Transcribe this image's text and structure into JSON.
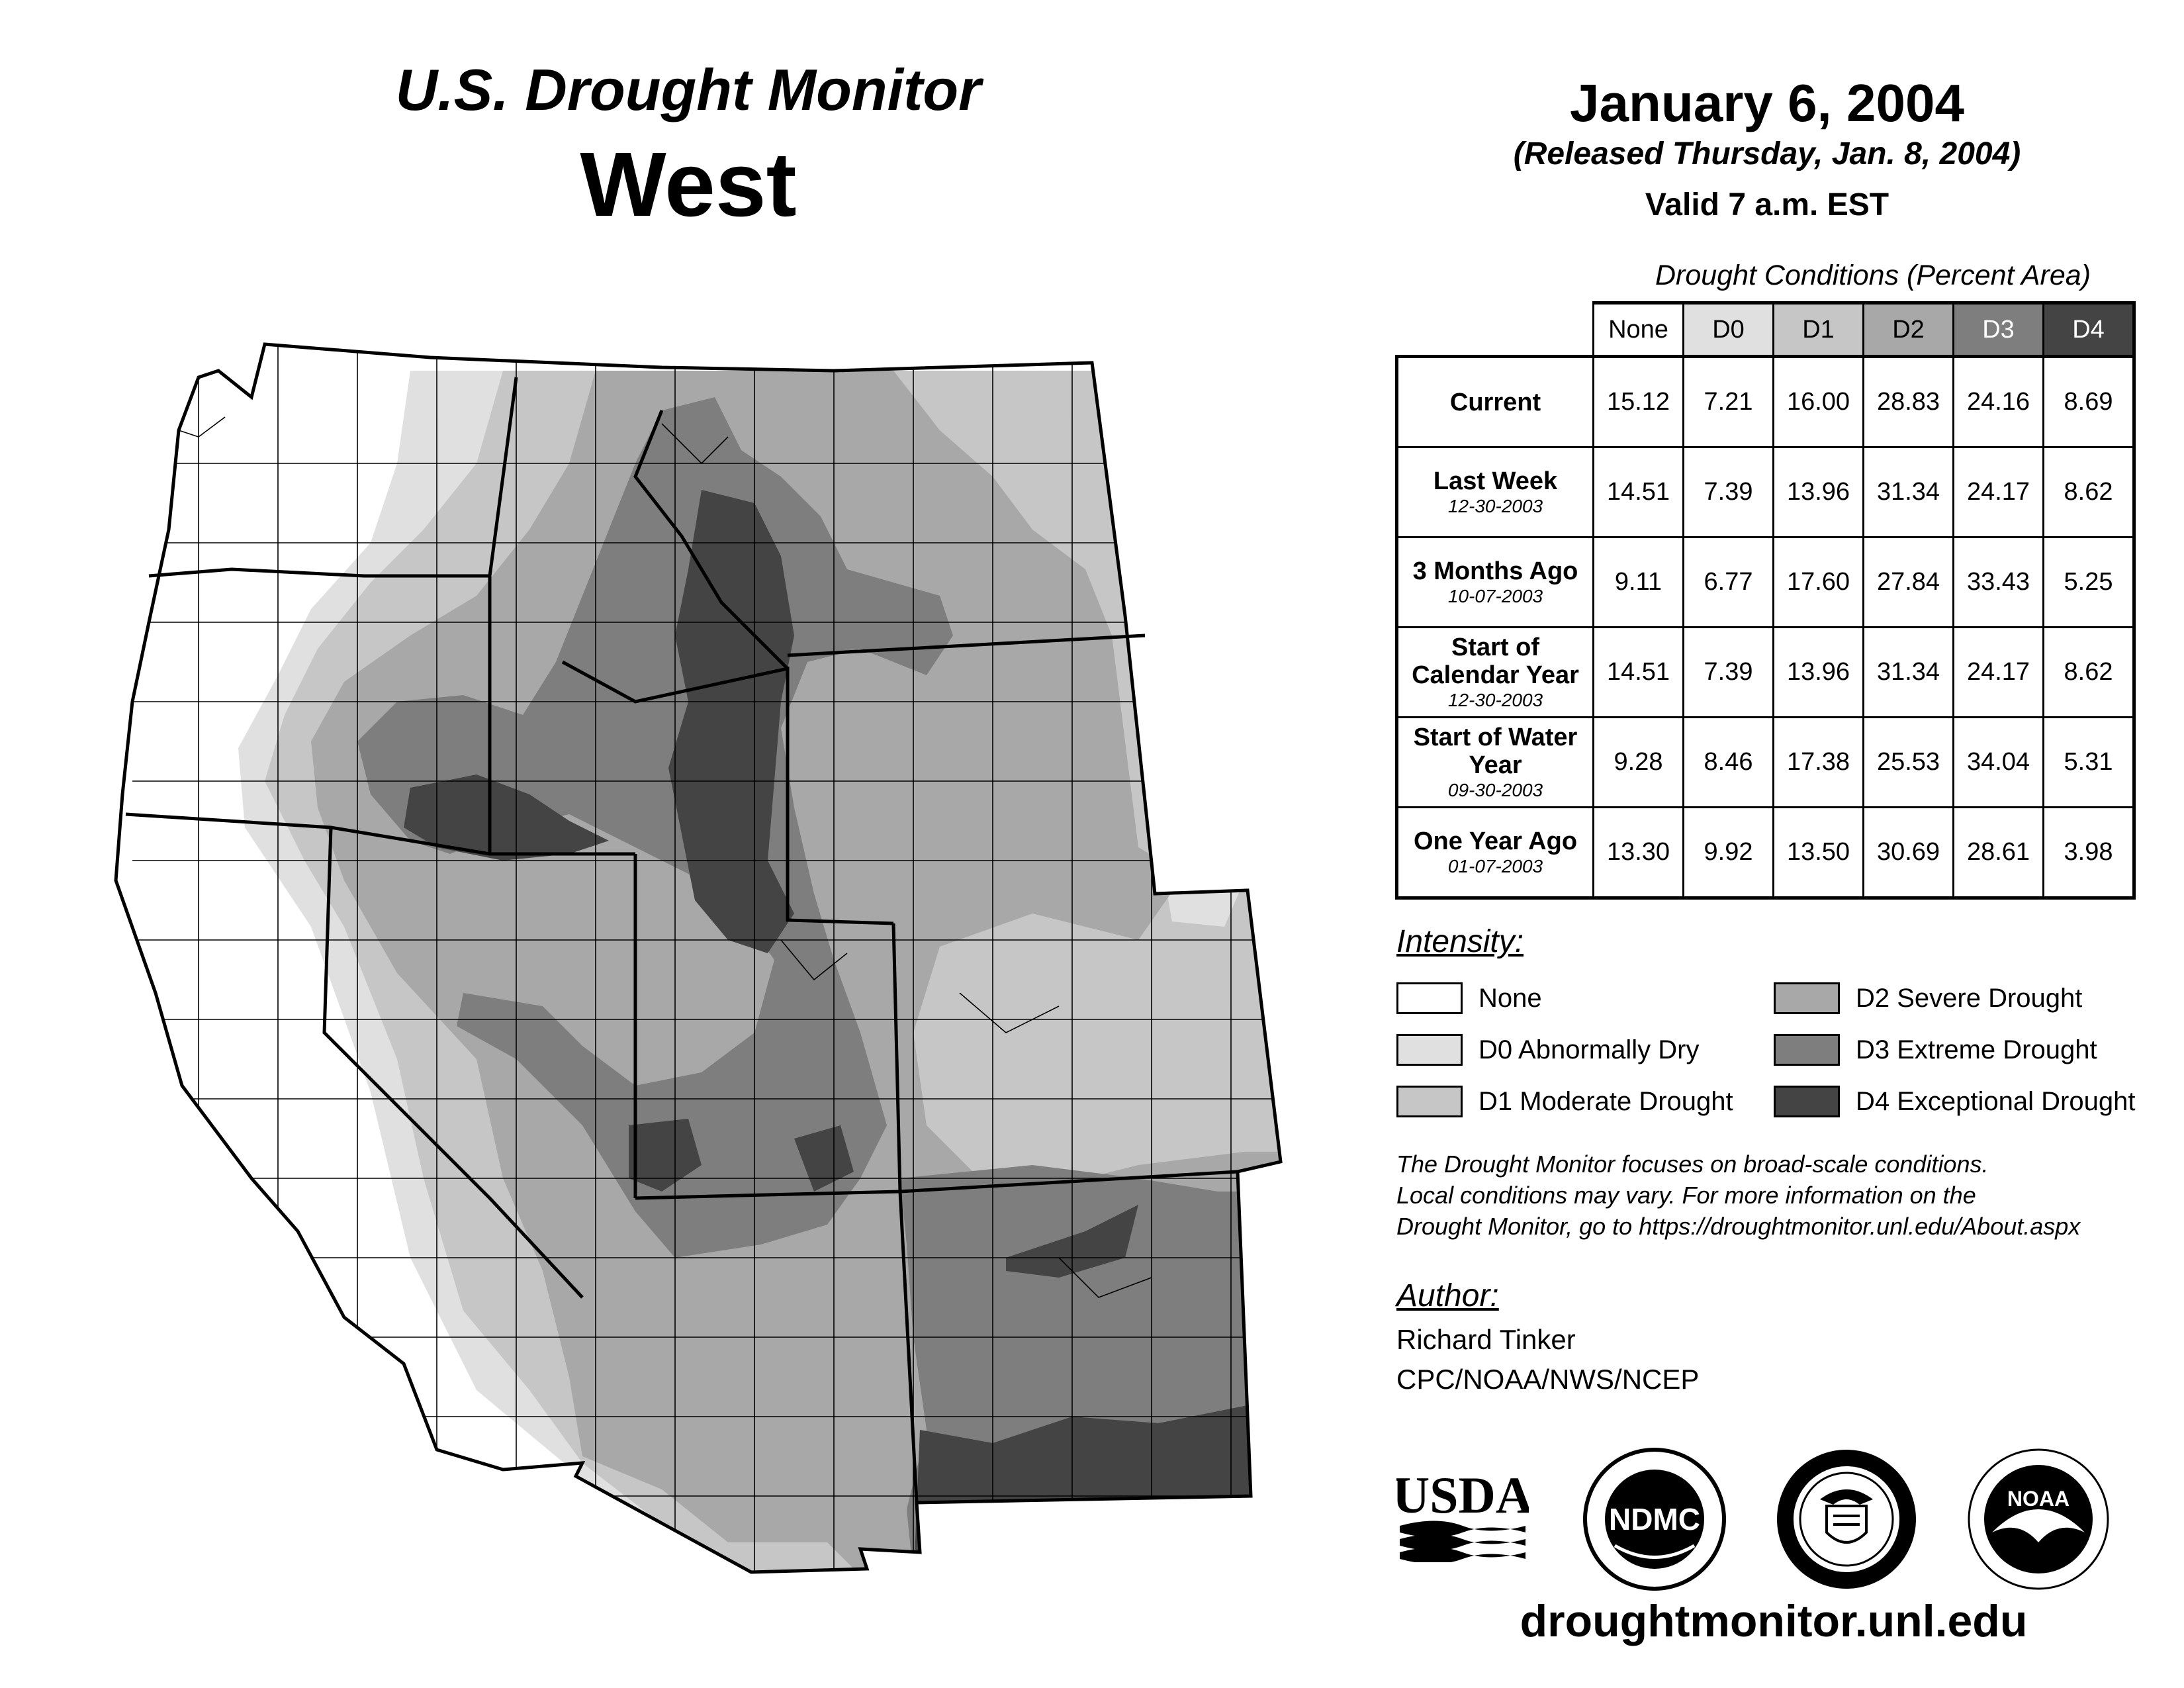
{
  "header": {
    "title": "U.S. Drought Monitor",
    "region": "West",
    "date": "January 6, 2004",
    "released": "(Released Thursday, Jan. 8, 2004)",
    "valid": "Valid 7 a.m. EST"
  },
  "table": {
    "caption": "Drought Conditions (Percent Area)",
    "columns": [
      "None",
      "D0",
      "D1",
      "D2",
      "D3",
      "D4"
    ],
    "column_colors": [
      "#ffffff",
      "#e0e0e0",
      "#c6c6c6",
      "#a8a8a8",
      "#7e7e7e",
      "#444444"
    ],
    "rows": [
      {
        "label": "Current",
        "sub": "",
        "values": [
          "15.12",
          "7.21",
          "16.00",
          "28.83",
          "24.16",
          "8.69"
        ]
      },
      {
        "label": "Last Week",
        "sub": "12-30-2003",
        "values": [
          "14.51",
          "7.39",
          "13.96",
          "31.34",
          "24.17",
          "8.62"
        ]
      },
      {
        "label": "3 Months Ago",
        "sub": "10-07-2003",
        "values": [
          "9.11",
          "6.77",
          "17.60",
          "27.84",
          "33.43",
          "5.25"
        ]
      },
      {
        "label": "Start of Calendar Year",
        "sub": "12-30-2003",
        "values": [
          "14.51",
          "7.39",
          "13.96",
          "31.34",
          "24.17",
          "8.62"
        ]
      },
      {
        "label": "Start of Water Year",
        "sub": "09-30-2003",
        "values": [
          "9.28",
          "8.46",
          "17.38",
          "25.53",
          "34.04",
          "5.31"
        ]
      },
      {
        "label": "One Year Ago",
        "sub": "01-07-2003",
        "values": [
          "13.30",
          "9.92",
          "13.50",
          "30.69",
          "28.61",
          "3.98"
        ]
      }
    ]
  },
  "legend": {
    "title": "Intensity:",
    "items": [
      {
        "label": "None",
        "color": "#ffffff"
      },
      {
        "label": "D0 Abnormally Dry",
        "color": "#e0e0e0"
      },
      {
        "label": "D1 Moderate Drought",
        "color": "#c6c6c6"
      },
      {
        "label": "D2 Severe Drought",
        "color": "#a8a8a8"
      },
      {
        "label": "D3 Extreme Drought",
        "color": "#7e7e7e"
      },
      {
        "label": "D4 Exceptional Drought",
        "color": "#444444"
      }
    ]
  },
  "note": {
    "line1": "The Drought Monitor focuses on broad-scale conditions.",
    "line2": "Local conditions may vary. For more information on the",
    "line3": "Drought Monitor, go to https://droughtmonitor.unl.edu/About.aspx"
  },
  "author": {
    "title": "Author:",
    "name": "Richard Tinker",
    "org": "CPC/NOAA/NWS/NCEP"
  },
  "logos": {
    "usda": "USDA",
    "ndmc": "NDMC",
    "noaa": "NOAA"
  },
  "footer": {
    "site": "droughtmonitor.unl.edu"
  }
}
